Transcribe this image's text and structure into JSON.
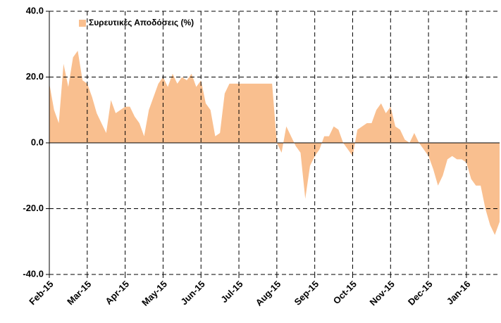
{
  "chart_data": {
    "type": "area",
    "legend": "top-left",
    "grid": true,
    "ylim": [
      -40,
      40
    ],
    "yticks": [
      {
        "value": -40,
        "label": "-40.0"
      },
      {
        "value": -20,
        "label": "-20.0"
      },
      {
        "value": 0,
        "label": "0.0"
      },
      {
        "value": 20,
        "label": "20.0"
      },
      {
        "value": 40,
        "label": "40.0"
      }
    ],
    "categories": [
      "Feb-15",
      null,
      null,
      null,
      null,
      null,
      null,
      null,
      "Mar-15",
      null,
      null,
      null,
      null,
      null,
      null,
      null,
      "Apr-15",
      null,
      null,
      null,
      null,
      null,
      null,
      null,
      "May-15",
      null,
      null,
      null,
      null,
      null,
      null,
      null,
      "Jun-15",
      null,
      null,
      null,
      null,
      null,
      null,
      null,
      "Jul-15",
      null,
      null,
      null,
      null,
      null,
      null,
      null,
      "Aug-15",
      null,
      null,
      null,
      null,
      null,
      null,
      null,
      "Sep-15",
      null,
      null,
      null,
      null,
      null,
      null,
      null,
      "Oct-15",
      null,
      null,
      null,
      null,
      null,
      null,
      null,
      "Nov-15",
      null,
      null,
      null,
      null,
      null,
      null,
      null,
      "Dec-15",
      null,
      null,
      null,
      null,
      null,
      null,
      null,
      "Jan-16",
      null,
      null,
      null,
      null,
      null,
      null,
      null
    ],
    "series": [
      {
        "name": "Συρευτικές Αποδόσεις (%)",
        "color": "#f9bf8f",
        "values": [
          18,
          10,
          6,
          24,
          17,
          26,
          28,
          19,
          18,
          14,
          9,
          6,
          3,
          13,
          9,
          10,
          11,
          11,
          8,
          6,
          2,
          10,
          14,
          18,
          20,
          17,
          21,
          18,
          20,
          19,
          21,
          17,
          19,
          12,
          10,
          2,
          3,
          15,
          18,
          18,
          18,
          18,
          18,
          18,
          18,
          18,
          18,
          18,
          0,
          -3,
          5,
          2,
          -1,
          -3,
          -17,
          -7,
          -4,
          -2,
          2,
          2,
          5,
          4,
          0,
          -2,
          -4,
          4,
          5,
          6,
          6,
          10,
          12,
          9,
          11,
          5,
          4,
          1,
          0,
          3,
          0,
          -2,
          -4,
          -8,
          -13,
          -10,
          -5,
          -4,
          -5,
          -5,
          -6,
          -11,
          -13,
          -13,
          -20,
          -25,
          -28,
          -24
        ]
      }
    ]
  }
}
